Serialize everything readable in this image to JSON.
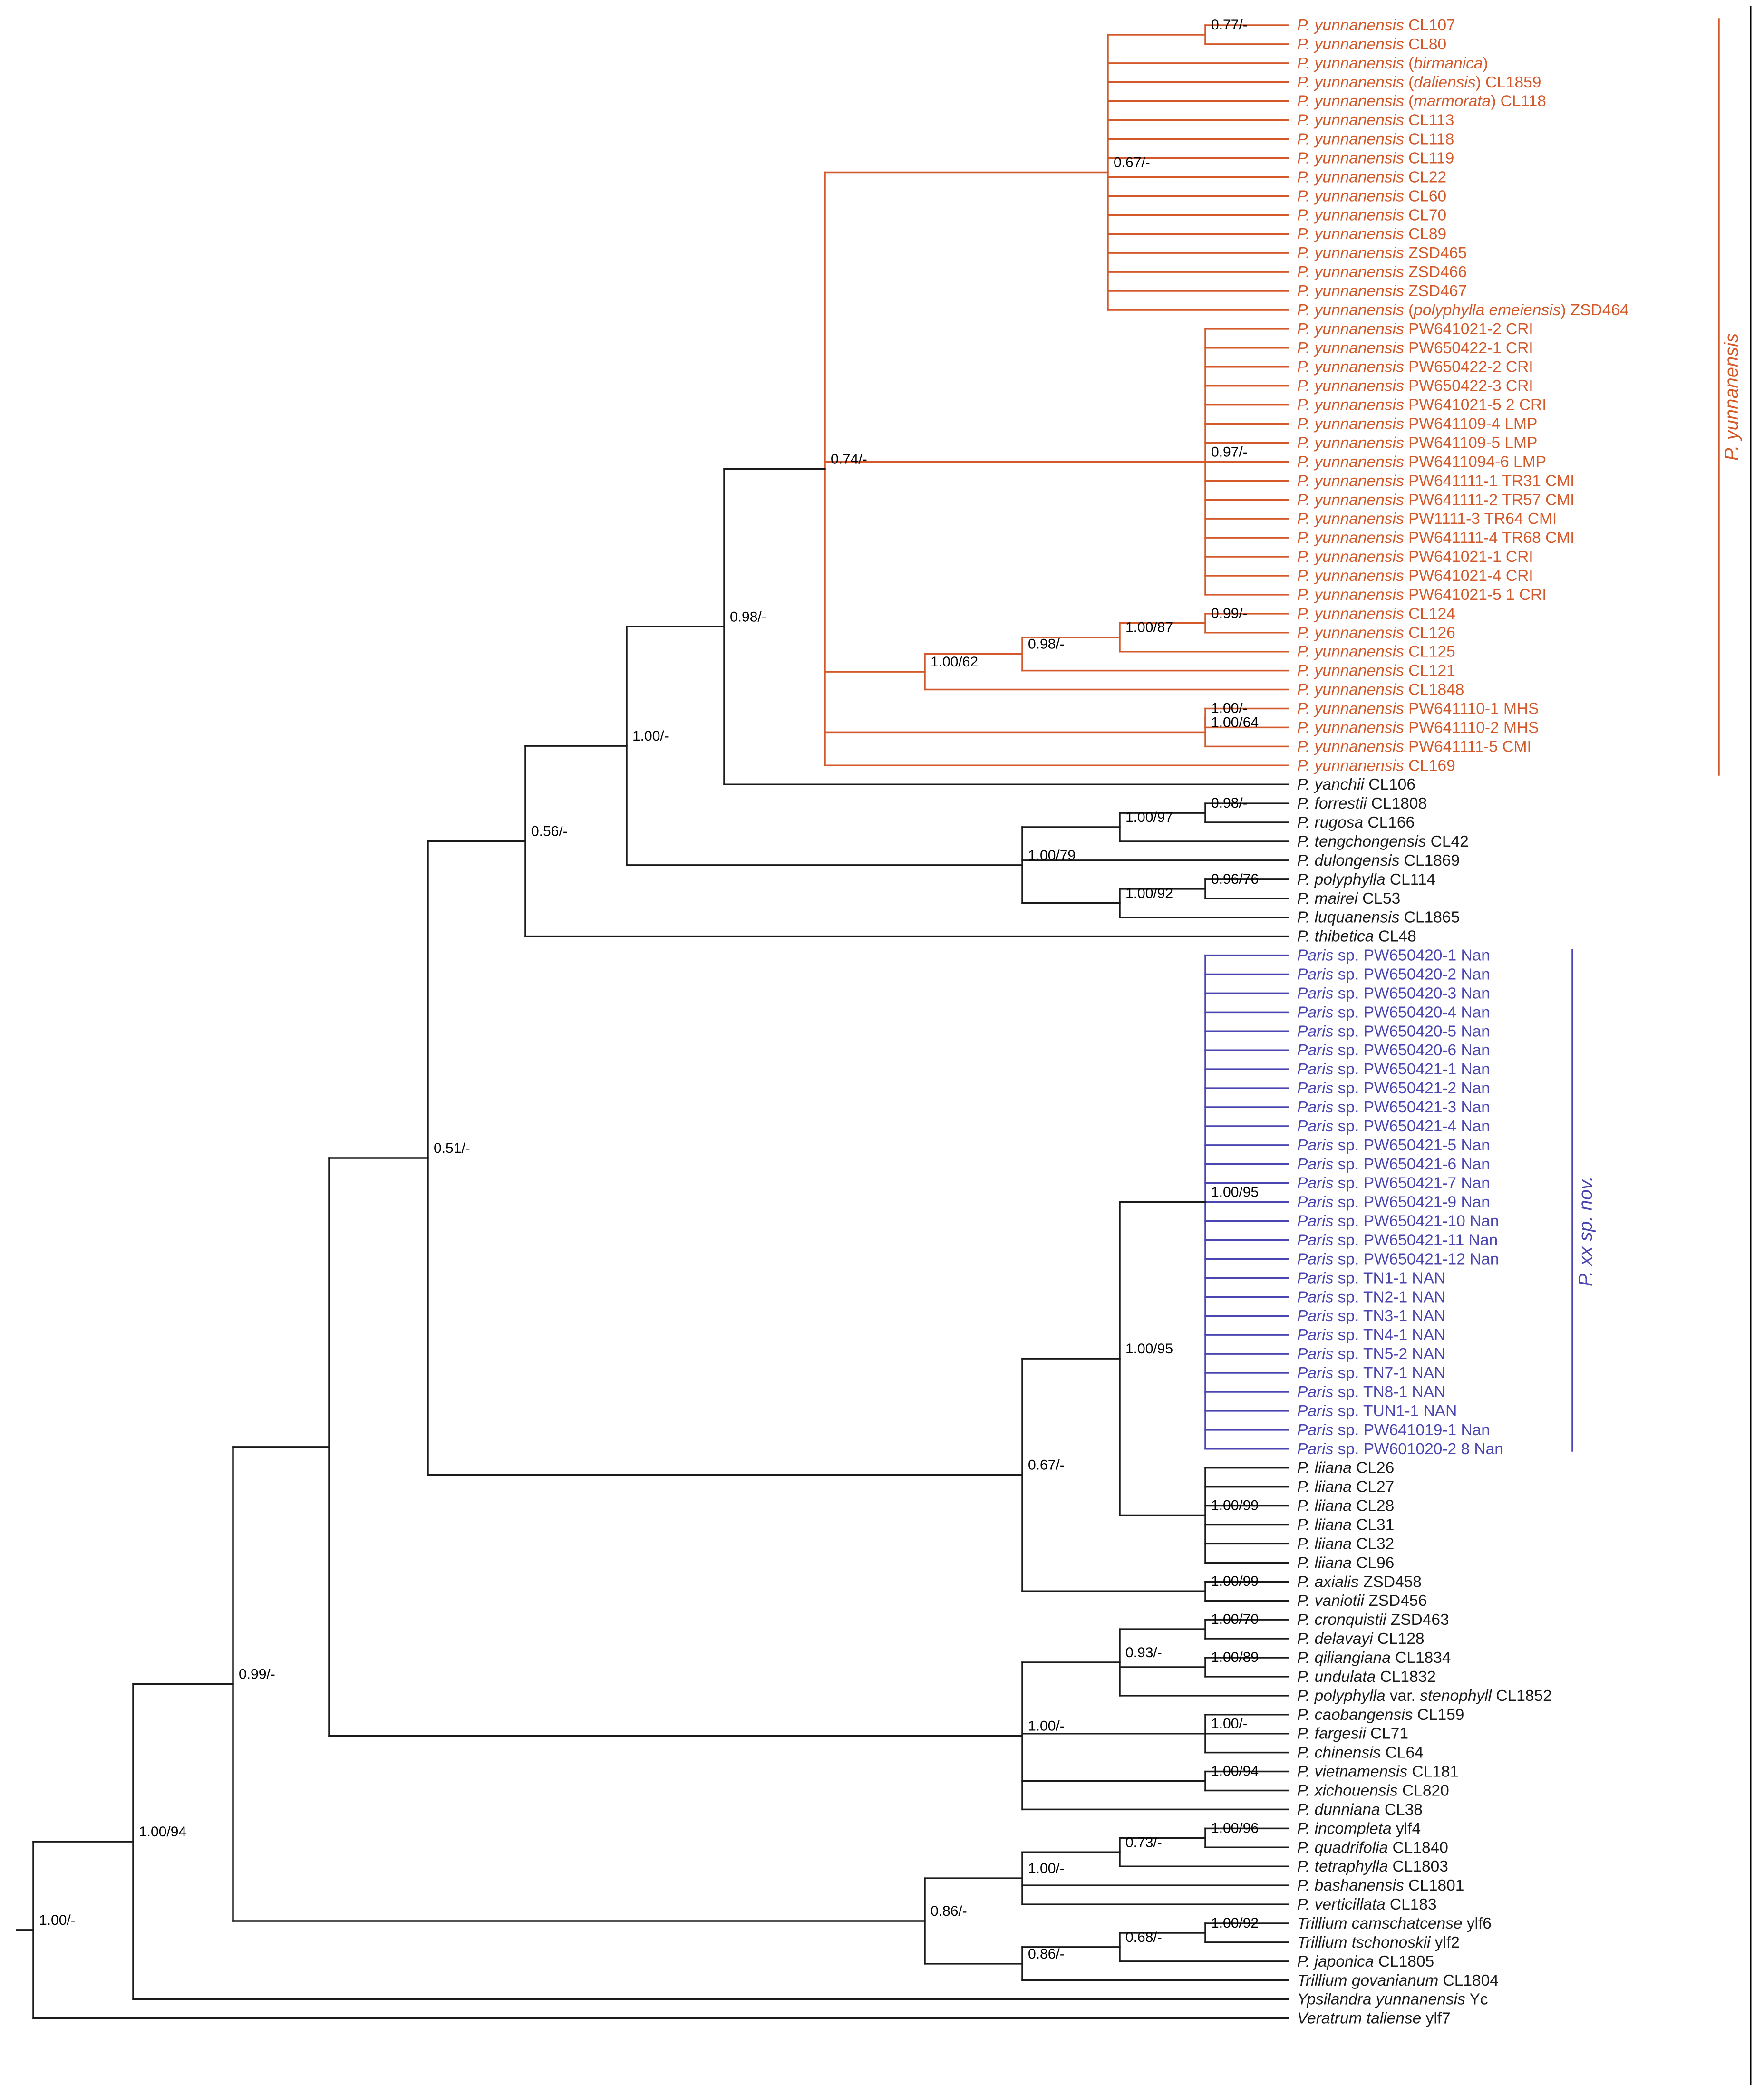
{
  "colors": {
    "black": "#1a1a1a",
    "orange": "#d4592a",
    "blue": "#4a45b0"
  },
  "clade_labels": [
    {
      "id": "yun",
      "text": "P. yunnanensis",
      "color": "orange"
    },
    {
      "id": "nov",
      "text": "P. xx sp. nov.",
      "color": "blue"
    }
  ],
  "tips": [
    {
      "it": "P. yunnanensis",
      "rest": " CL107",
      "c": "orange_p"
    },
    {
      "it": "P. yunnanensis",
      "rest": " CL80",
      "c": "orange_p"
    },
    {
      "it": "P. yunnanensis",
      "rest": " (",
      "it2": "birmanica",
      "rest2": ")",
      "c": "orange_p"
    },
    {
      "it": "P. yunnanensis",
      "rest": " (",
      "it2": "daliensis",
      "rest2": ") CL1859",
      "c": "orange_p"
    },
    {
      "it": "P. yunnanensis",
      "rest": " (",
      "it2": "marmorata",
      "rest2": ") CL118",
      "c": "orange_p"
    },
    {
      "it": "P. yunnanensis",
      "rest": " CL113",
      "c": "orange_p"
    },
    {
      "it": "P. yunnanensis",
      "rest": " CL118",
      "c": "orange_p"
    },
    {
      "it": "P. yunnanensis",
      "rest": " CL119",
      "c": "orange_p"
    },
    {
      "it": "P. yunnanensis",
      "rest": " CL22",
      "c": "orange_p"
    },
    {
      "it": "P. yunnanensis",
      "rest": " CL60",
      "c": "orange_p"
    },
    {
      "it": "P. yunnanensis",
      "rest": " CL70",
      "c": "orange_p"
    },
    {
      "it": "P. yunnanensis",
      "rest": " CL89",
      "c": "orange_p"
    },
    {
      "it": "P. yunnanensis",
      "rest": " ZSD465",
      "c": "orange_p"
    },
    {
      "it": "P. yunnanensis",
      "rest": " ZSD466",
      "c": "orange_p"
    },
    {
      "it": "P. yunnanensis",
      "rest": " ZSD467",
      "c": "orange_p"
    },
    {
      "it": "P. yunnanensis",
      "rest": " (",
      "it2": "polyphylla emeiensis",
      "rest2": ") ZSD464",
      "c": "orange_p"
    },
    {
      "it": "P. yunnanensis",
      "rest": " PW641021-2 CRI",
      "c": "orange"
    },
    {
      "it": "P. yunnanensis",
      "rest": " PW650422-1 CRI",
      "c": "orange"
    },
    {
      "it": "P. yunnanensis",
      "rest": " PW650422-2 CRI",
      "c": "orange"
    },
    {
      "it": "P. yunnanensis",
      "rest": " PW650422-3 CRI",
      "c": "orange"
    },
    {
      "it": "P. yunnanensis",
      "rest": " PW641021-5 2 CRI",
      "c": "orange"
    },
    {
      "it": "P. yunnanensis",
      "rest": " PW641109-4 LMP",
      "c": "orange"
    },
    {
      "it": "P. yunnanensis",
      "rest": " PW641109-5 LMP",
      "c": "orange"
    },
    {
      "it": "P. yunnanensis",
      "rest": " PW6411094-6 LMP",
      "c": "orange"
    },
    {
      "it": "P. yunnanensis",
      "rest": " PW641111-1 TR31  CMI",
      "c": "orange"
    },
    {
      "it": "P. yunnanensis",
      "rest": " PW641111-2  TR57  CMI",
      "c": "orange"
    },
    {
      "it": "P. yunnanensis",
      "rest": " PW1111-3  TR64  CMI",
      "c": "orange"
    },
    {
      "it": "P. yunnanensis",
      "rest": " PW641111-4  TR68  CMI",
      "c": "orange"
    },
    {
      "it": "P. yunnanensis",
      "rest": " PW641021-1 CRI",
      "c": "orange"
    },
    {
      "it": "P. yunnanensis",
      "rest": " PW641021-4 CRI",
      "c": "orange"
    },
    {
      "it": "P. yunnanensis",
      "rest": " PW641021-5 1 CRI",
      "c": "orange"
    },
    {
      "it": "P. yunnanensis",
      "rest": " CL124",
      "c": "orange_p"
    },
    {
      "it": "P. yunnanensis",
      "rest": " CL126",
      "c": "orange_p"
    },
    {
      "it": "P. yunnanensis",
      "rest": " CL125",
      "c": "orange_p"
    },
    {
      "it": "P. yunnanensis",
      "rest": " CL121",
      "c": "orange_p"
    },
    {
      "it": "P. yunnanensis",
      "rest": " CL1848",
      "c": "orange_p"
    },
    {
      "it": "P. yunnanensis",
      "rest": " PW641110-1 MHS",
      "c": "orange"
    },
    {
      "it": "P. yunnanensis",
      "rest": " PW641110-2 MHS",
      "c": "orange"
    },
    {
      "it": "P. yunnanensis",
      "rest": " PW641111-5 CMI",
      "c": "orange"
    },
    {
      "it": "P. yunnanensis",
      "rest": " CL169",
      "c": "orange_p"
    },
    {
      "it": "P. yanchii",
      "rest": " CL106",
      "c": "black"
    },
    {
      "it": "P. forrestii",
      "rest": " CL1808",
      "c": "black"
    },
    {
      "it": "P. rugosa",
      "rest": " CL166",
      "c": "black"
    },
    {
      "it": "P. tengchongensis",
      "rest": " CL42",
      "c": "black"
    },
    {
      "it": "P. dulongensis",
      "rest": " CL1869",
      "c": "black"
    },
    {
      "it": "P. polyphylla",
      "rest": " CL114",
      "c": "black"
    },
    {
      "it": "P. mairei",
      "rest": " CL53",
      "c": "black"
    },
    {
      "it": "P. luquanensis",
      "rest": " CL1865",
      "c": "black"
    },
    {
      "it": "P. thibetica",
      "rest": " CL48",
      "c": "black"
    },
    {
      "it": "Paris",
      "rest": " sp. PW650420-1 Nan",
      "c": "blue"
    },
    {
      "it": "Paris",
      "rest": " sp. PW650420-2 Nan",
      "c": "blue"
    },
    {
      "it": "Paris",
      "rest": " sp. PW650420-3 Nan",
      "c": "blue"
    },
    {
      "it": "Paris",
      "rest": " sp. PW650420-4 Nan",
      "c": "blue"
    },
    {
      "it": "Paris",
      "rest": " sp. PW650420-5 Nan",
      "c": "blue"
    },
    {
      "it": "Paris",
      "rest": " sp. PW650420-6 Nan",
      "c": "blue"
    },
    {
      "it": "Paris",
      "rest": " sp. PW650421-1 Nan",
      "c": "blue"
    },
    {
      "it": "Paris",
      "rest": " sp. PW650421-2 Nan",
      "c": "blue"
    },
    {
      "it": "Paris",
      "rest": " sp. PW650421-3 Nan",
      "c": "blue"
    },
    {
      "it": "Paris",
      "rest": " sp. PW650421-4 Nan",
      "c": "blue"
    },
    {
      "it": "Paris",
      "rest": " sp. PW650421-5 Nan",
      "c": "blue"
    },
    {
      "it": "Paris",
      "rest": " sp. PW650421-6 Nan",
      "c": "blue"
    },
    {
      "it": "Paris",
      "rest": " sp. PW650421-7 Nan",
      "c": "blue"
    },
    {
      "it": "Paris",
      "rest": " sp. PW650421-9 Nan",
      "c": "blue"
    },
    {
      "it": "Paris",
      "rest": " sp. PW650421-10 Nan",
      "c": "blue"
    },
    {
      "it": "Paris",
      "rest": " sp. PW650421-11 Nan",
      "c": "blue"
    },
    {
      "it": "Paris",
      "rest": " sp. PW650421-12 Nan",
      "c": "blue"
    },
    {
      "it": "Paris",
      "rest": " sp. TN1-1 NAN",
      "c": "blue"
    },
    {
      "it": "Paris",
      "rest": " sp. TN2-1 NAN",
      "c": "blue"
    },
    {
      "it": "Paris",
      "rest": " sp. TN3-1 NAN",
      "c": "blue"
    },
    {
      "it": "Paris",
      "rest": " sp. TN4-1 NAN",
      "c": "blue"
    },
    {
      "it": "Paris",
      "rest": " sp. TN5-2 NAN",
      "c": "blue"
    },
    {
      "it": "Paris",
      "rest": " sp. TN7-1 NAN",
      "c": "blue"
    },
    {
      "it": "Paris",
      "rest": " sp. TN8-1 NAN",
      "c": "blue"
    },
    {
      "it": "Paris",
      "rest": " sp. TUN1-1 NAN",
      "c": "blue"
    },
    {
      "it": "Paris",
      "rest": " sp. PW641019-1 Nan",
      "c": "blue"
    },
    {
      "it": "Paris",
      "rest": " sp. PW601020-2 8 Nan",
      "c": "blue"
    },
    {
      "it": "P. liiana",
      "rest": " CL26",
      "c": "black"
    },
    {
      "it": "P. liiana",
      "rest": " CL27",
      "c": "black"
    },
    {
      "it": "P. liiana",
      "rest": " CL28",
      "c": "black"
    },
    {
      "it": "P. liiana",
      "rest": " CL31",
      "c": "black"
    },
    {
      "it": "P. liiana",
      "rest": " CL32",
      "c": "black"
    },
    {
      "it": "P. liiana",
      "rest": " CL96",
      "c": "black"
    },
    {
      "it": "P. axialis",
      "rest": " ZSD458",
      "c": "black"
    },
    {
      "it": "P. vaniotii",
      "rest": " ZSD456",
      "c": "black"
    },
    {
      "it": "P. cronquistii",
      "rest": " ZSD463",
      "c": "black"
    },
    {
      "it": "P. delavayi",
      "rest": " CL128",
      "c": "black"
    },
    {
      "it": "P. qiliangiana",
      "rest": " CL1834",
      "c": "black"
    },
    {
      "it": "P. undulata",
      "rest": " CL1832",
      "c": "black"
    },
    {
      "it": "P. polyphylla",
      "rest": " var. ",
      "it2": "stenophyll",
      "rest2": " CL1852",
      "c": "black"
    },
    {
      "it": "P. caobangensis",
      "rest": " CL159",
      "c": "black"
    },
    {
      "it": "P. fargesii",
      "rest": " CL71",
      "c": "black"
    },
    {
      "it": "P. chinensis",
      "rest": " CL64",
      "c": "black"
    },
    {
      "it": "P. vietnamensis",
      "rest": " CL181",
      "c": "black"
    },
    {
      "it": "P. xichouensis",
      "rest": " CL820",
      "c": "black"
    },
    {
      "it": "P. dunniana",
      "rest": " CL38",
      "c": "black"
    },
    {
      "it": "P. incompleta",
      "rest": " ylf4",
      "c": "black"
    },
    {
      "it": "P. quadrifolia",
      "rest": " CL1840",
      "c": "black"
    },
    {
      "it": "P. tetraphylla",
      "rest": " CL1803",
      "c": "black"
    },
    {
      "it": "P. bashanensis",
      "rest": " CL1801",
      "c": "black"
    },
    {
      "it": "P. verticillata",
      "rest": " CL183",
      "c": "black"
    },
    {
      "it": "Trillium camschatcense",
      "rest": " ylf6",
      "c": "black"
    },
    {
      "it": "Trillium tschonoskii",
      "rest": " ylf2",
      "c": "black"
    },
    {
      "it": "P. japonica",
      "rest": " CL1805",
      "c": "black"
    },
    {
      "it": "Trillium govanianum",
      "rest": " CL1804",
      "c": "black"
    },
    {
      "it": "Ypsilandra yunnanensis",
      "rest": " Yc",
      "c": "black"
    },
    {
      "it": "Veratrum taliense",
      "rest": " ylf7",
      "c": "black"
    }
  ],
  "nodes": [
    {
      "id": "yA",
      "c": "orange",
      "ch": [
        0,
        1
      ],
      "sup": "0.77/-"
    },
    {
      "id": "yB",
      "c": "orange",
      "ch": [
        "yA",
        2,
        3,
        4,
        5,
        6,
        7,
        8,
        9,
        10,
        11,
        12,
        13,
        14,
        15
      ],
      "sup": "0.67/-"
    },
    {
      "id": "yC",
      "c": "orange",
      "ch": [
        16,
        17,
        18,
        19,
        20,
        21,
        22,
        23,
        24,
        25,
        26,
        27,
        28,
        29,
        30
      ],
      "sup": "0.97/-"
    },
    {
      "id": "yD",
      "c": "orange",
      "ch": [
        31,
        32
      ],
      "sup": "0.99/-"
    },
    {
      "id": "yE",
      "c": "orange",
      "ch": [
        "yD",
        33
      ],
      "sup": "1.00/87"
    },
    {
      "id": "yF",
      "c": "orange",
      "ch": [
        "yE",
        34
      ],
      "sup": "0.98/-"
    },
    {
      "id": "yG",
      "c": "orange",
      "ch": [
        "yF",
        35
      ],
      "sup": "1.00/62"
    },
    {
      "id": "yH",
      "c": "orange",
      "ch": [
        36,
        37
      ],
      "sup": "1.00/-"
    },
    {
      "id": "yI",
      "c": "orange",
      "ch": [
        "yH",
        38
      ],
      "sup": "1.00/64"
    },
    {
      "id": "yJ",
      "c": "orange",
      "ch": [
        "yB",
        "yC",
        "yG",
        "yI",
        39
      ],
      "sup": "0.74/-"
    },
    {
      "id": "yK",
      "c": "black",
      "ch": [
        "yJ",
        40
      ],
      "sup": "0.98/-"
    },
    {
      "id": "fA",
      "c": "black",
      "ch": [
        41,
        42
      ],
      "sup": "0.98/-"
    },
    {
      "id": "fB",
      "c": "black",
      "ch": [
        "fA",
        43
      ],
      "sup": "1.00/97"
    },
    {
      "id": "fC",
      "c": "black",
      "ch": [
        45,
        46
      ],
      "sup": "0.96/76"
    },
    {
      "id": "fD",
      "c": "black",
      "ch": [
        "fC",
        47
      ],
      "sup": "1.00/92"
    },
    {
      "id": "fE",
      "c": "black",
      "ch": [
        "fB",
        44,
        "fD"
      ],
      "sup": "1.00/79"
    },
    {
      "id": "pA",
      "c": "black",
      "ch": [
        "yK",
        "fE"
      ],
      "sup": "1.00/-"
    },
    {
      "id": "pB",
      "c": "black",
      "ch": [
        "pA",
        48
      ],
      "sup": "0.56/-"
    },
    {
      "id": "nA",
      "c": "blue",
      "ch": [
        49,
        50,
        51,
        52,
        53,
        54,
        55,
        56,
        57,
        58,
        59,
        60,
        61,
        62,
        63,
        64,
        65,
        66,
        67,
        68,
        69,
        70,
        71,
        72,
        73,
        74,
        75
      ],
      "sup": "1.00/95"
    },
    {
      "id": "nB",
      "c": "black",
      "ch": [
        76,
        77,
        78,
        79,
        80,
        81
      ],
      "sup": "1.00/99"
    },
    {
      "id": "nC",
      "c": "black",
      "ch": [
        "nA",
        "nB"
      ],
      "sup": "1.00/95"
    },
    {
      "id": "nD",
      "c": "black",
      "ch": [
        82,
        83
      ],
      "sup": "1.00/99"
    },
    {
      "id": "nE",
      "c": "black",
      "ch": [
        "nC",
        "nD"
      ],
      "sup": "0.67/-"
    },
    {
      "id": "pC",
      "c": "black",
      "ch": [
        "pB",
        "nE"
      ],
      "sup": "0.51/-"
    },
    {
      "id": "dA",
      "c": "black",
      "ch": [
        84,
        85
      ],
      "sup": "1.00/70"
    },
    {
      "id": "dB",
      "c": "black",
      "ch": [
        86,
        87
      ],
      "sup": "1.00/89"
    },
    {
      "id": "dC",
      "c": "black",
      "ch": [
        "dA",
        "dB",
        88
      ],
      "sup": "0.93/-"
    },
    {
      "id": "dD",
      "c": "black",
      "ch": [
        89,
        90,
        91
      ],
      "sup": "1.00/-"
    },
    {
      "id": "dE",
      "c": "black",
      "ch": [
        92,
        93
      ],
      "sup": "1.00/94"
    },
    {
      "id": "dF",
      "c": "black",
      "ch": [
        "dC",
        "dD",
        "dE",
        94
      ],
      "sup": "1.00/-"
    },
    {
      "id": "pD",
      "c": "black",
      "ch": [
        "pC",
        "dF"
      ],
      "sup": ""
    },
    {
      "id": "tA",
      "c": "black",
      "ch": [
        95,
        96
      ],
      "sup": "1.00/96"
    },
    {
      "id": "tB",
      "c": "black",
      "ch": [
        "tA",
        97
      ],
      "sup": "0.73/-"
    },
    {
      "id": "tC",
      "c": "black",
      "ch": [
        "tB",
        98,
        99
      ],
      "sup": "1.00/-"
    },
    {
      "id": "tD",
      "c": "black",
      "ch": [
        100,
        101
      ],
      "sup": "1.00/92"
    },
    {
      "id": "tE",
      "c": "black",
      "ch": [
        "tD",
        102
      ],
      "sup": "0.68/-"
    },
    {
      "id": "tF",
      "c": "black",
      "ch": [
        "tE",
        103
      ],
      "sup": "0.86/-"
    },
    {
      "id": "tG",
      "c": "black",
      "ch": [
        "tC",
        "tF"
      ],
      "sup": "0.86/-"
    },
    {
      "id": "pE",
      "c": "black",
      "ch": [
        "pD",
        "tG"
      ],
      "sup": "0.99/-"
    },
    {
      "id": "pF",
      "c": "black",
      "ch": [
        "pE",
        104
      ],
      "sup": "1.00/94"
    },
    {
      "id": "root",
      "c": "black",
      "ch": [
        "pF",
        105
      ],
      "sup": "1.00/-"
    }
  ]
}
